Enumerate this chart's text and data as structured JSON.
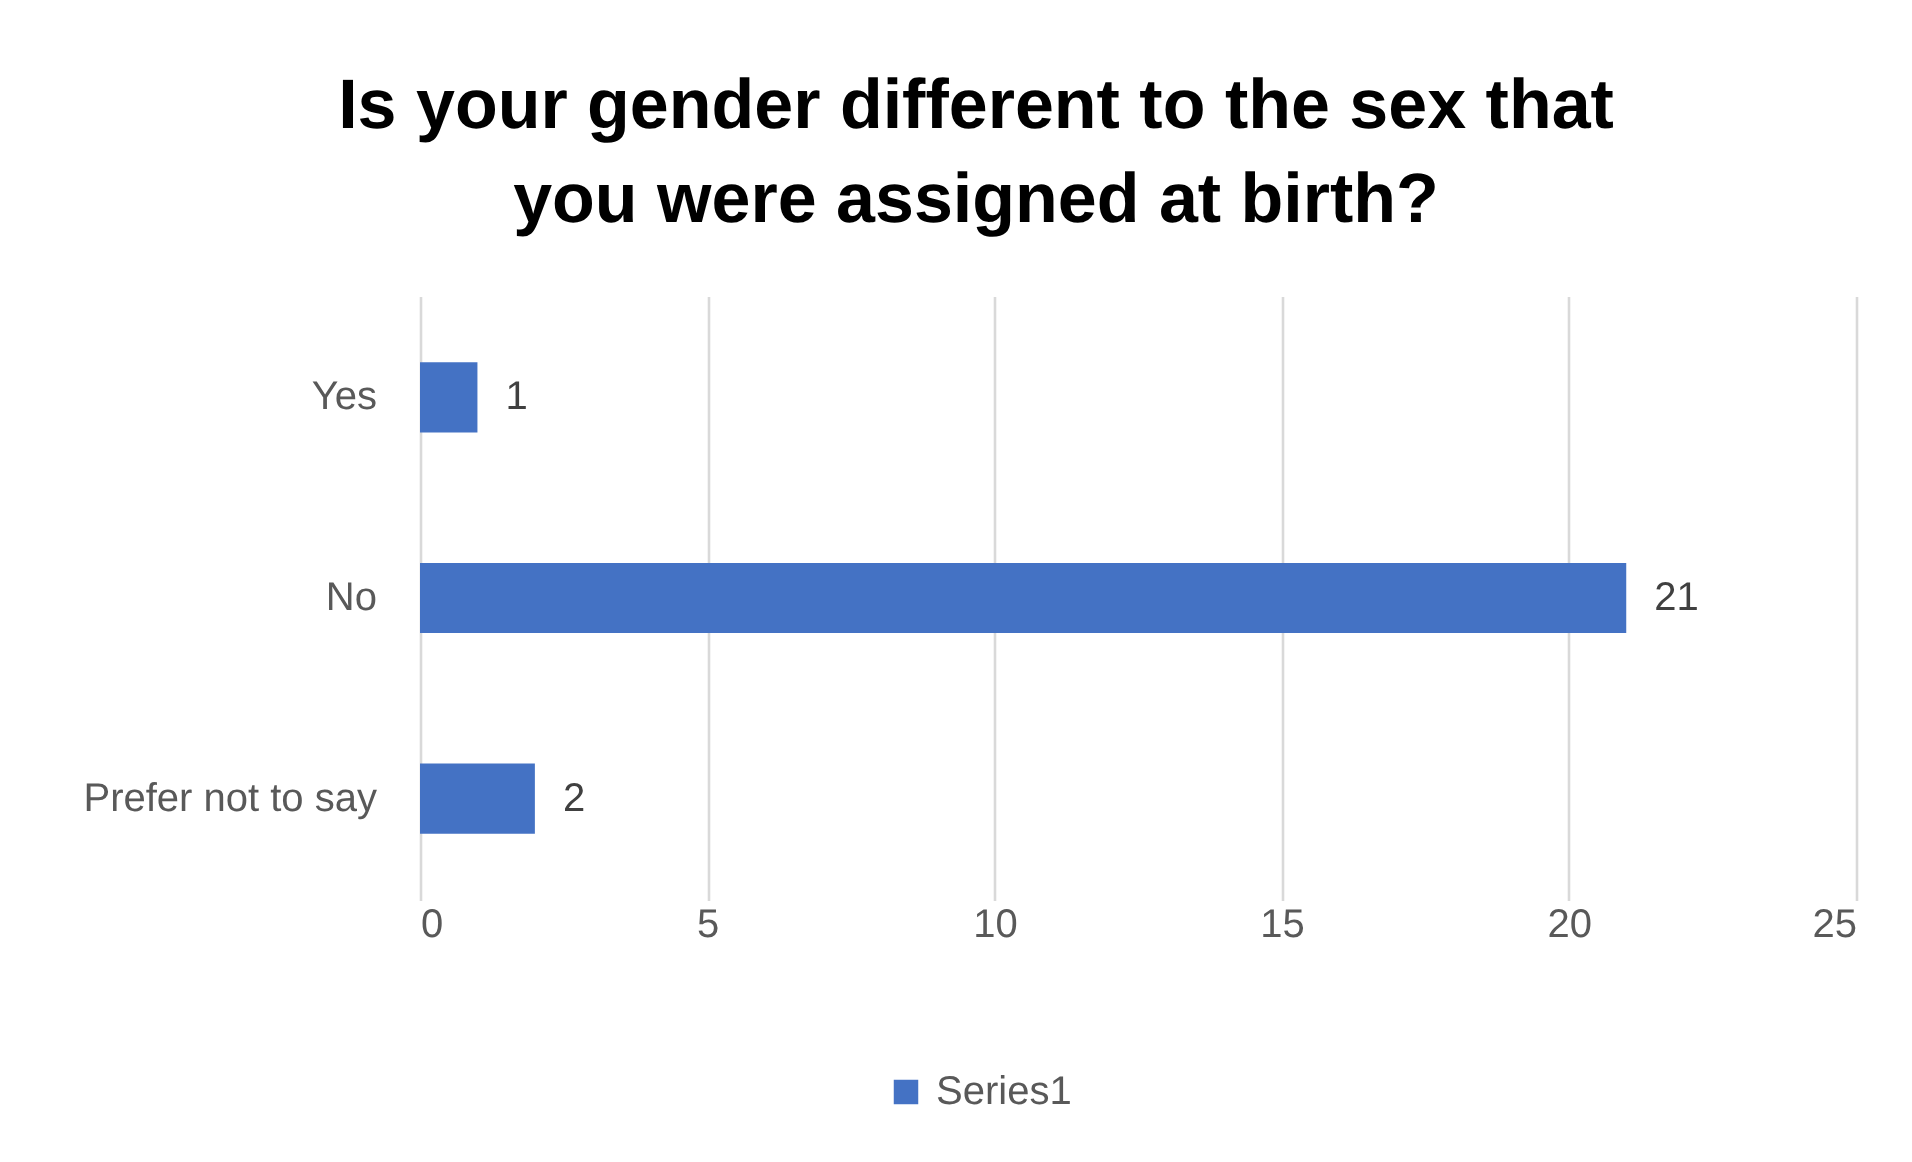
{
  "chart_data": {
    "type": "bar",
    "title": "Is your gender different to the sex that you were assigned at birth?",
    "orientation": "horizontal",
    "categories": [
      "Yes",
      "No",
      "Prefer not to say"
    ],
    "series": [
      {
        "name": "Series1",
        "color": "#4472c4",
        "values": [
          1,
          21,
          2
        ]
      }
    ],
    "xlim": [
      0,
      25
    ],
    "xticks": [
      0,
      5,
      10,
      15,
      20,
      25
    ],
    "grid": "x",
    "legend": "bottom",
    "data_labels": true
  }
}
